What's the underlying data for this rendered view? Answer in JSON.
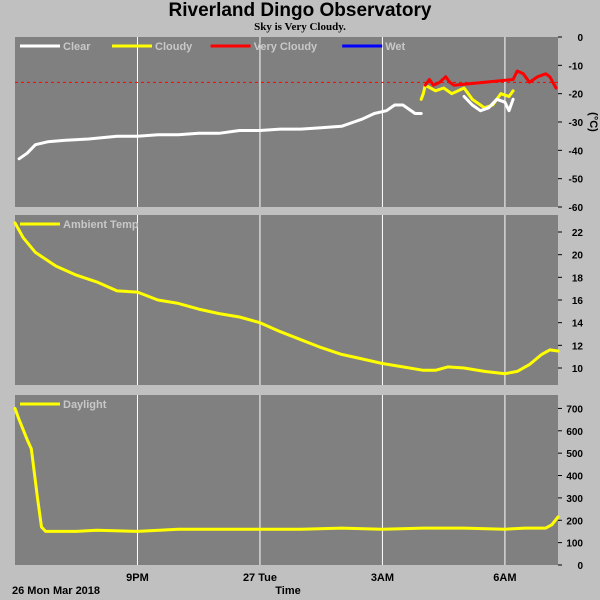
{
  "title": "Riverland Dingo Observatory",
  "subtitle": "Sky is Very Cloudy.",
  "colors": {
    "background": "#c0c0c0",
    "panel": "#808080",
    "grid": "#ffffff",
    "threshold": "#ff0000"
  },
  "footer": {
    "date_label": "26 Mon Mar 2018",
    "x_label": "Time"
  },
  "chart_data": [
    {
      "type": "line",
      "ylabel": "(°C)",
      "yticks": [
        0,
        -10,
        -20,
        -30,
        -40,
        -50,
        -60
      ],
      "ylim": [
        -60,
        0
      ],
      "x_range_hours": [
        17.0,
        30.3
      ],
      "threshold": -16,
      "legend": [
        {
          "name": "Clear",
          "color": "#ffffff"
        },
        {
          "name": "Cloudy",
          "color": "#ffff00"
        },
        {
          "name": "Very Cloudy",
          "color": "#ff0000"
        },
        {
          "name": "Wet",
          "color": "#0000ff"
        }
      ],
      "series": [
        {
          "name": "Clear",
          "color": "#ffffff",
          "x": [
            17.1,
            17.3,
            17.5,
            17.8,
            18.2,
            18.8,
            19.5,
            20.0,
            20.5,
            21.0,
            21.5,
            22.0,
            22.5,
            23.0,
            23.5,
            24.0,
            24.5,
            25.0,
            25.3,
            25.5,
            25.8,
            26.1,
            26.3,
            26.5,
            26.8,
            26.95
          ],
          "y": [
            -43,
            -41,
            -38,
            -37,
            -36.5,
            -36,
            -35,
            -35,
            -34.5,
            -34.5,
            -34,
            -34,
            -33,
            -33,
            -32.5,
            -32.5,
            -32,
            -31.5,
            -30,
            -29,
            -27,
            -26,
            -24,
            -24,
            -27,
            -27
          ]
        },
        {
          "name": "Cloudy",
          "color": "#ffff00",
          "x": [
            26.95,
            27.0,
            27.05,
            27.3,
            27.5,
            27.7,
            28.0,
            28.2,
            28.5,
            28.7,
            28.9,
            29.1,
            29.2
          ],
          "y": [
            -22,
            -20,
            -17,
            -19,
            -18,
            -20,
            -18,
            -22,
            -25,
            -24,
            -20,
            -21,
            -19
          ]
        },
        {
          "name": "Very Cloudy",
          "color": "#ff0000",
          "x": [
            27.05,
            27.15,
            27.25,
            27.4,
            27.55,
            27.65,
            27.75,
            29.2,
            29.3,
            29.45,
            29.6,
            29.8,
            30.0,
            30.1,
            30.25
          ],
          "y": [
            -17,
            -15,
            -17,
            -16,
            -14,
            -16,
            -17,
            -15,
            -12,
            -13,
            -16,
            -14,
            -13,
            -14,
            -18
          ]
        },
        {
          "name": "Clear",
          "color": "#ffffff",
          "x": [
            28.0,
            28.2,
            28.4,
            28.6,
            28.8,
            29.0,
            29.1,
            29.2
          ],
          "y": [
            -21,
            -24,
            -26,
            -25,
            -22,
            -23,
            -26,
            -22
          ]
        }
      ]
    },
    {
      "type": "line",
      "legend": [
        {
          "name": "Ambient Temp",
          "color": "#ffff00"
        }
      ],
      "yticks": [
        10,
        12,
        14,
        16,
        18,
        20,
        22
      ],
      "ylim": [
        8.5,
        23.5
      ],
      "x_range_hours": [
        17.0,
        30.3
      ],
      "series": [
        {
          "name": "Ambient Temp",
          "color": "#ffff00",
          "x": [
            17.0,
            17.2,
            17.5,
            18.0,
            18.5,
            19.0,
            19.5,
            20.0,
            20.5,
            21.0,
            21.5,
            22.0,
            22.5,
            23.0,
            23.5,
            24.0,
            24.5,
            25.0,
            25.5,
            26.0,
            26.5,
            27.0,
            27.3,
            27.6,
            28.0,
            28.5,
            29.0,
            29.3,
            29.6,
            29.9,
            30.1,
            30.3
          ],
          "y": [
            22.8,
            21.5,
            20.2,
            19.0,
            18.2,
            17.6,
            16.8,
            16.7,
            16.0,
            15.7,
            15.2,
            14.8,
            14.5,
            14.0,
            13.2,
            12.5,
            11.8,
            11.2,
            10.8,
            10.4,
            10.1,
            9.8,
            9.8,
            10.1,
            10.0,
            9.7,
            9.5,
            9.7,
            10.3,
            11.2,
            11.6,
            11.5
          ]
        }
      ]
    },
    {
      "type": "line",
      "legend": [
        {
          "name": "Daylight",
          "color": "#ffff00"
        }
      ],
      "yticks": [
        0,
        100,
        200,
        300,
        400,
        500,
        600,
        700
      ],
      "ylim": [
        0,
        760
      ],
      "x_range_hours": [
        17.0,
        30.3
      ],
      "xticks": [
        {
          "hour": 20,
          "label": "9PM"
        },
        {
          "hour": 23,
          "label": "27 Tue"
        },
        {
          "hour": 26,
          "label": "3AM"
        },
        {
          "hour": 29,
          "label": "6AM"
        }
      ],
      "series": [
        {
          "name": "Daylight",
          "color": "#ffff00",
          "x": [
            17.0,
            17.1,
            17.3,
            17.4,
            17.55,
            17.65,
            17.75,
            17.85,
            18.0,
            18.5,
            19.0,
            20.0,
            21.0,
            22.0,
            23.0,
            24.0,
            25.0,
            26.0,
            27.0,
            28.0,
            29.0,
            29.5,
            30.0,
            30.15,
            30.3
          ],
          "y": [
            700,
            650,
            560,
            520,
            300,
            170,
            150,
            150,
            150,
            150,
            155,
            150,
            160,
            160,
            160,
            160,
            165,
            160,
            165,
            165,
            160,
            165,
            165,
            180,
            215
          ]
        }
      ]
    }
  ]
}
